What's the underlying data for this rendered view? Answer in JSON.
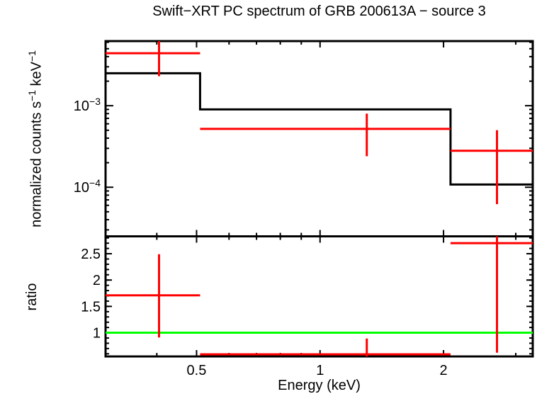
{
  "title": "Swift−XRT PC spectrum of GRB 200613A − source 3",
  "colors": {
    "data": "#ff0000",
    "model": "#000000",
    "reference": "#00ff00",
    "axis": "#000000",
    "background": "#ffffff"
  },
  "x_axis": {
    "label": "Energy (keV)",
    "scale": "log",
    "min": 0.3,
    "max": 3.3,
    "major_ticks": [
      0.5,
      1,
      2
    ],
    "major_tick_labels": [
      "0.5",
      "1",
      "2"
    ],
    "minor_ticks": [
      0.4,
      0.6,
      0.7,
      0.8,
      0.9,
      3
    ]
  },
  "chart_data": [
    {
      "type": "step-line-with-errorbars",
      "panel": "spectrum",
      "ylabel_parts": [
        {
          "text": "normalized counts s"
        },
        {
          "text": "−1"
        },
        {
          "text": " keV"
        },
        {
          "text": "−1"
        }
      ],
      "yscale": "log",
      "ymin": 2.5e-05,
      "ymax": 0.0062,
      "ytick_labels": [
        {
          "base": "10",
          "exp": "−3",
          "value": 0.001
        },
        {
          "base": "10",
          "exp": "−4",
          "value": 0.0001
        }
      ],
      "model_steps": [
        {
          "x0": 0.3,
          "x1": 0.51,
          "y": 0.0025
        },
        {
          "x0": 0.51,
          "x1": 2.08,
          "y": 0.0009
        },
        {
          "x0": 2.08,
          "x1": 3.3,
          "y": 0.000108
        }
      ],
      "points": [
        {
          "x": 0.405,
          "x_lo": 0.3,
          "x_hi": 0.51,
          "y": 0.0044,
          "y_lo": 0.0023,
          "y_hi": 0.0062,
          "y_hi_clipped": true
        },
        {
          "x": 1.3,
          "x_lo": 0.51,
          "x_hi": 2.08,
          "y": 0.00052,
          "y_lo": 0.00024,
          "y_hi": 0.0008
        },
        {
          "x": 2.7,
          "x_lo": 2.08,
          "x_hi": 3.3,
          "x_hi_clipped": true,
          "y": 0.00028,
          "y_lo": 6.2e-05,
          "y_hi": 0.0005
        }
      ]
    },
    {
      "type": "errorbars-with-reference-line",
      "panel": "ratio",
      "ylabel": "ratio",
      "yscale": "linear",
      "ymin": 0.55,
      "ymax": 2.83,
      "ytick_labels": [
        {
          "text": "1",
          "value": 1.0
        },
        {
          "text": "1.5",
          "value": 1.5
        },
        {
          "text": "2",
          "value": 2.0
        },
        {
          "text": "2.5",
          "value": 2.5
        }
      ],
      "minor_tick_step": 0.1,
      "reference_line": {
        "y": 1.0
      },
      "points": [
        {
          "x": 0.405,
          "x_lo": 0.3,
          "x_hi": 0.51,
          "y": 1.71,
          "y_lo": 0.91,
          "y_hi": 2.49
        },
        {
          "x": 1.3,
          "x_lo": 0.51,
          "x_hi": 2.08,
          "y": 0.59,
          "y_lo": 0.55,
          "y_lo_clipped": true,
          "y_hi": 0.89
        },
        {
          "x": 2.7,
          "x_lo": 2.08,
          "x_hi": 3.3,
          "x_hi_clipped": true,
          "y": 2.7,
          "y_lo": 0.62,
          "y_hi": 2.83,
          "y_hi_clipped": true
        }
      ]
    }
  ]
}
